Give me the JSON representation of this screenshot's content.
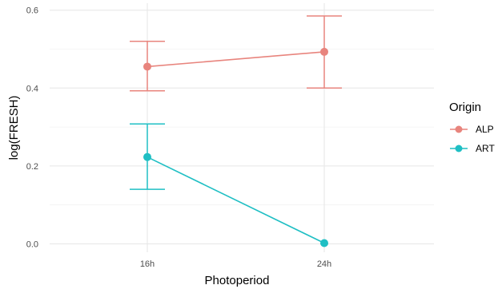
{
  "chart_data": {
    "type": "line",
    "xlabel": "Photoperiod",
    "ylabel": "log(FRESH)",
    "categories": [
      "16h",
      "24h"
    ],
    "ylim": [
      -0.02,
      0.62
    ],
    "yticks": [
      0.0,
      0.2,
      0.4,
      0.6
    ],
    "ytick_labels": [
      "0.0",
      "0.2",
      "0.4",
      "0.6"
    ],
    "grid": true,
    "legend": {
      "title": "Origin",
      "placement": "right"
    },
    "series": [
      {
        "name": "ALP",
        "color": "#E8847D",
        "values": [
          0.455,
          0.493
        ],
        "error_lower": [
          0.393,
          0.4
        ],
        "error_upper": [
          0.52,
          0.585
        ]
      },
      {
        "name": "ART",
        "color": "#1FBFC4",
        "values": [
          0.223,
          0.002
        ],
        "error_lower": [
          0.14,
          null
        ],
        "error_upper": [
          0.308,
          null
        ]
      }
    ]
  }
}
